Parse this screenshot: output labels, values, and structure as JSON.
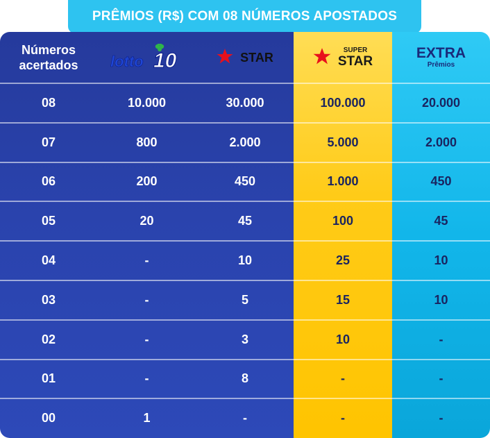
{
  "title": "PRÊMIOS (R$) COM 08 NÚMEROS APOSTADOS",
  "header": {
    "numeros_line1": "Números",
    "numeros_line2": "acertados",
    "lotto_label": "10",
    "star_label": "STAR",
    "super_top": "SUPER",
    "super_bottom": "STAR",
    "extra_main": "EXTRA",
    "extra_sub": "Prêmios"
  },
  "colors": {
    "blue": "#2a43ad",
    "gold": "#ffcb18",
    "cyan": "#12b6ea",
    "title_bg": "#2ec3f0",
    "star_red": "#e8101c"
  },
  "icons": [
    "lotto10-logo-icon",
    "star-icon"
  ],
  "rows": [
    [
      "08",
      "10.000",
      "30.000",
      "100.000",
      "20.000"
    ],
    [
      "07",
      "800",
      "2.000",
      "5.000",
      "2.000"
    ],
    [
      "06",
      "200",
      "450",
      "1.000",
      "450"
    ],
    [
      "05",
      "20",
      "45",
      "100",
      "45"
    ],
    [
      "04",
      "-",
      "10",
      "25",
      "10"
    ],
    [
      "03",
      "-",
      "5",
      "15",
      "10"
    ],
    [
      "02",
      "-",
      "3",
      "10",
      "-"
    ],
    [
      "01",
      "-",
      "8",
      "-",
      "-"
    ],
    [
      "00",
      "1",
      "-",
      "-",
      "-"
    ]
  ]
}
